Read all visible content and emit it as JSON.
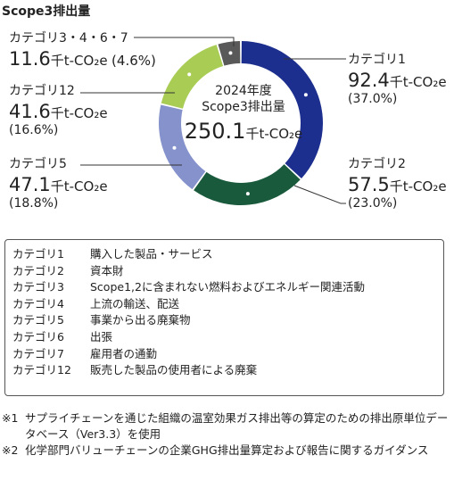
{
  "title": "Scope3排出量",
  "center": {
    "year": "2024年度",
    "label": "Scope3排出量",
    "total": "250.1",
    "unit": "千t-CO₂e"
  },
  "unit": "千t-CO₂e",
  "labels": [
    {
      "category": "カテゴリ1",
      "value": "92.4",
      "pct": "(37.0%)"
    },
    {
      "category": "カテゴリ2",
      "value": "57.5",
      "pct": "(23.0%)"
    },
    {
      "category": "カテゴリ5",
      "value": "47.1",
      "pct": "(18.8%)"
    },
    {
      "category": "カテゴリ12",
      "value": "41.6",
      "pct": "(16.6%)"
    },
    {
      "category": "カテゴリ3・4・6・7",
      "value": "11.6",
      "pct": "(4.6%)"
    }
  ],
  "legend": [
    {
      "code": "カテゴリ1",
      "desc": "購入した製品・サービス"
    },
    {
      "code": "カテゴリ2",
      "desc": "資本財"
    },
    {
      "code": "カテゴリ3",
      "desc": "Scope1,2に含まれない燃料およびエネルギー関連活動"
    },
    {
      "code": "カテゴリ4",
      "desc": "上流の輸送、配送"
    },
    {
      "code": "カテゴリ5",
      "desc": "事業から出る廃棄物"
    },
    {
      "code": "カテゴリ6",
      "desc": "出張"
    },
    {
      "code": "カテゴリ7",
      "desc": "雇用者の通勤"
    },
    {
      "code": "カテゴリ12",
      "desc": "販売した製品の使用者による廃棄"
    }
  ],
  "notes": [
    {
      "mark": "※1",
      "text": "サプライチェーンを通じた組織の温室効果ガス排出等の算定のための排出原単位データベース（Ver3.3）を使用"
    },
    {
      "mark": "※2",
      "text": "化学部門バリューチェーンの企業GHG排出量算定および報告に関するガイダンス"
    }
  ],
  "chart_data": {
    "type": "pie",
    "title": "Scope3排出量",
    "unit": "千t-CO₂e",
    "total": 250.1,
    "categories": [
      "カテゴリ1",
      "カテゴリ2",
      "カテゴリ5",
      "カテゴリ12",
      "カテゴリ3・4・6・7"
    ],
    "values": [
      92.4,
      57.5,
      47.1,
      41.6,
      11.6
    ],
    "percents": [
      37.0,
      23.0,
      18.8,
      16.6,
      4.6
    ],
    "colors": [
      "#1d2f8e",
      "#1a5a3c",
      "#8592cc",
      "#a9cc55",
      "#595959"
    ]
  }
}
